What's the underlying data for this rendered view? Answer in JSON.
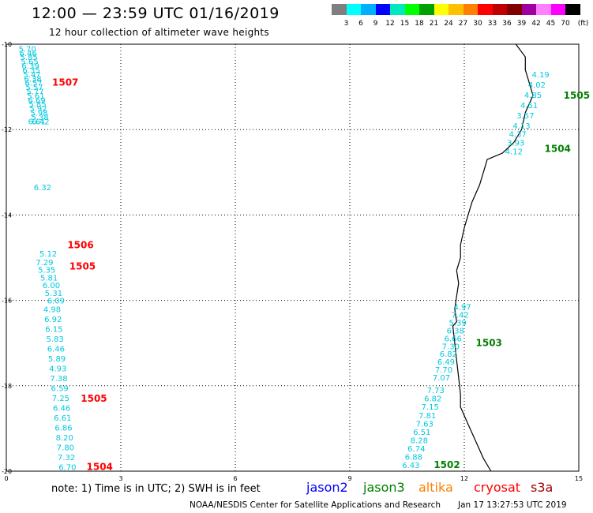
{
  "header": {
    "title": "12:00 — 23:59 UTC 01/16/2019",
    "subtitle": "12 hour collection of altimeter wave heights"
  },
  "color_scale": {
    "colors": [
      "#7f7f7f",
      "#00ffff",
      "#00b0ff",
      "#0000ff",
      "#00e8c0",
      "#00ff00",
      "#00a000",
      "#ffff00",
      "#ffc000",
      "#ff8000",
      "#ff0000",
      "#c00000",
      "#800000",
      "#a000a0",
      "#ff80ff",
      "#ff00ff",
      "#000000"
    ],
    "labels": [
      "3",
      "6",
      "9",
      "12",
      "15",
      "18",
      "21",
      "24",
      "27",
      "30",
      "33",
      "36",
      "39",
      "42",
      "45",
      "70",
      "(ft)"
    ]
  },
  "map": {
    "x_ticks": [
      "0",
      "3",
      "6",
      "9",
      "12",
      "15"
    ],
    "y_ticks": [
      "-10",
      "-12",
      "-14",
      "-16",
      "-18",
      "-20"
    ],
    "coastline_lon_lat": [
      [
        13.35,
        -10.0
      ],
      [
        13.6,
        -10.3
      ],
      [
        13.6,
        -10.6
      ],
      [
        13.7,
        -10.9
      ],
      [
        13.8,
        -11.2
      ],
      [
        13.6,
        -11.6
      ],
      [
        13.5,
        -12.0
      ],
      [
        13.3,
        -12.3
      ],
      [
        13.0,
        -12.55
      ],
      [
        12.6,
        -12.7
      ],
      [
        12.5,
        -13.0
      ],
      [
        12.4,
        -13.3
      ],
      [
        12.2,
        -13.7
      ],
      [
        12.1,
        -14.0
      ],
      [
        12.0,
        -14.3
      ],
      [
        11.9,
        -14.7
      ],
      [
        11.9,
        -15.0
      ],
      [
        11.8,
        -15.3
      ],
      [
        11.85,
        -15.6
      ],
      [
        11.8,
        -15.9
      ],
      [
        11.75,
        -16.2
      ],
      [
        11.8,
        -16.5
      ],
      [
        11.7,
        -16.6
      ],
      [
        11.75,
        -17.0
      ],
      [
        11.8,
        -17.4
      ],
      [
        11.85,
        -17.8
      ],
      [
        11.9,
        -18.2
      ],
      [
        11.9,
        -18.5
      ],
      [
        12.1,
        -18.9
      ],
      [
        12.3,
        -19.3
      ],
      [
        12.5,
        -19.7
      ],
      [
        12.7,
        -20.0
      ]
    ],
    "passes": [
      {
        "label": "1507",
        "color": "#ff0000",
        "start": [
          0.55,
          -10.1
        ],
        "end": [
          0.9,
          -11.8
        ],
        "label_pos": [
          1.2,
          -10.9
        ],
        "values": [
          "5.70",
          "6.46",
          "5.85",
          "5.65",
          "6.39",
          "6.35",
          "5.47",
          "6.38",
          "6.57",
          "5.57",
          "5.77",
          "5.61",
          "6.69",
          "5.85",
          "5.92",
          "5.98",
          "5.38",
          "6.42"
        ]
      },
      {
        "label": "1506",
        "color": "#ff0000",
        "start": [
          0.8,
          -11.8
        ],
        "end": [
          1.1,
          -14.9
        ],
        "label_pos": [
          1.6,
          -14.7
        ],
        "values": [
          "6.61",
          "6.32",
          "5.12"
        ]
      },
      {
        "label": "1505",
        "color": "#ff0000",
        "start": [
          1.0,
          -15.1
        ],
        "end": [
          1.3,
          -16.0
        ],
        "label_pos": [
          1.65,
          -15.2
        ],
        "values": [
          "7.29",
          "5.35",
          "5.81",
          "6.00",
          "5.31",
          "6.09"
        ]
      },
      {
        "label": "1505",
        "color": "#ff0000",
        "start": [
          1.2,
          -16.2
        ],
        "end": [
          1.6,
          -19.9
        ],
        "label_pos": [
          1.95,
          -18.3
        ],
        "values": [
          "4.98",
          "6.92",
          "6.15",
          "5.83",
          "6.46",
          "5.89",
          "4.93",
          "7.38",
          "6.59",
          "7.25",
          "6.46",
          "6.61",
          "6.86",
          "8.20",
          "7.80",
          "7.32",
          "6.70"
        ]
      },
      {
        "label": "1504",
        "color": "#ff0000",
        "start": [
          1.6,
          -19.9
        ],
        "end": [
          1.6,
          -19.9
        ],
        "label_pos": [
          2.1,
          -19.9
        ],
        "values": []
      },
      {
        "label": "1505",
        "color": "#008000",
        "start": [
          14.0,
          -10.7
        ],
        "end": [
          13.5,
          -11.9
        ],
        "label_pos": [
          14.6,
          -11.2
        ],
        "values": [
          "4.19",
          "4.02",
          "4.85",
          "4.51",
          "3.57",
          "4.13"
        ]
      },
      {
        "label": "1504",
        "color": "#008000",
        "start": [
          13.4,
          -12.1
        ],
        "end": [
          13.3,
          -12.5
        ],
        "label_pos": [
          14.1,
          -12.45
        ],
        "values": [
          "4.37",
          "3.93",
          "4.12"
        ]
      },
      {
        "label": "1503",
        "color": "#008000",
        "start": [
          11.95,
          -16.15
        ],
        "end": [
          11.4,
          -17.8
        ],
        "label_pos": [
          12.3,
          -17.0
        ],
        "values": [
          "4.97",
          "7.42",
          "5.39",
          "6.38",
          "6.66",
          "7.30",
          "6.82",
          "6.49",
          "7.70",
          "7.07"
        ]
      },
      {
        "label": "1502",
        "color": "#008000",
        "start": [
          11.25,
          -18.1
        ],
        "end": [
          10.6,
          -19.85
        ],
        "label_pos": [
          11.2,
          -19.85
        ],
        "values": [
          "7.73",
          "6.82",
          "7.15",
          "7.81",
          "7.63",
          "6.51",
          "8.28",
          "6.74",
          "6.88",
          "6.43"
        ]
      }
    ]
  },
  "legend": {
    "note": "note:  1) Time is in UTC;  2) SWH is in feet",
    "satellites": [
      {
        "name": "jason2",
        "color": "#0000ff"
      },
      {
        "name": "jason3",
        "color": "#008000"
      },
      {
        "name": "altika",
        "color": "#ff8000"
      },
      {
        "name": "cryosat",
        "color": "#ff0000"
      },
      {
        "name": "s3a",
        "color": "#a00000"
      }
    ]
  },
  "footer": {
    "center": "NOAA/NESDIS Center for Satellite Applications and Research",
    "right": "Jan 17 13:27:53 UTC 2019"
  }
}
